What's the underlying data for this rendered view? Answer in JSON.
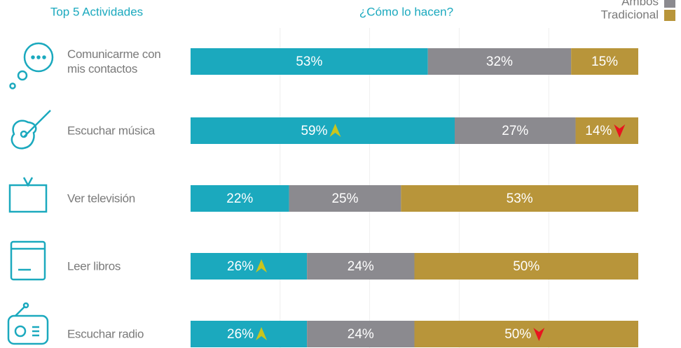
{
  "chart_data": {
    "type": "stacked-bar-horizontal",
    "title": "Top 5 Actividades",
    "subtitle": "¿Cómo lo hacen?",
    "categories": [
      "Comunicarme con mis contactos",
      "Escuchar música",
      "Ver televisión",
      "Leer libros",
      "Escuchar radio"
    ],
    "series": [
      {
        "color": "#1ba9be",
        "values": [
          53,
          59,
          22,
          26,
          26
        ],
        "value_labels": [
          "53%",
          "59%",
          "22%",
          "26%",
          "26%"
        ],
        "trends": [
          null,
          "up",
          null,
          "up",
          "up"
        ]
      },
      {
        "name": "Ambos",
        "color": "#8b8a8f",
        "values": [
          32,
          27,
          25,
          24,
          24
        ],
        "value_labels": [
          "32%",
          "27%",
          "25%",
          "24%",
          "24%"
        ],
        "trends": [
          null,
          null,
          null,
          null,
          null
        ]
      },
      {
        "name": "Tradicional",
        "color": "#b8953a",
        "values": [
          15,
          14,
          53,
          50,
          50
        ],
        "value_labels": [
          "15%",
          "14%",
          "53%",
          "50%",
          "50%"
        ],
        "trends": [
          null,
          "down",
          null,
          null,
          "down"
        ]
      }
    ],
    "xlim": [
      0,
      100
    ],
    "xticks": [
      20,
      40,
      60,
      80
    ],
    "grid": true
  }
}
